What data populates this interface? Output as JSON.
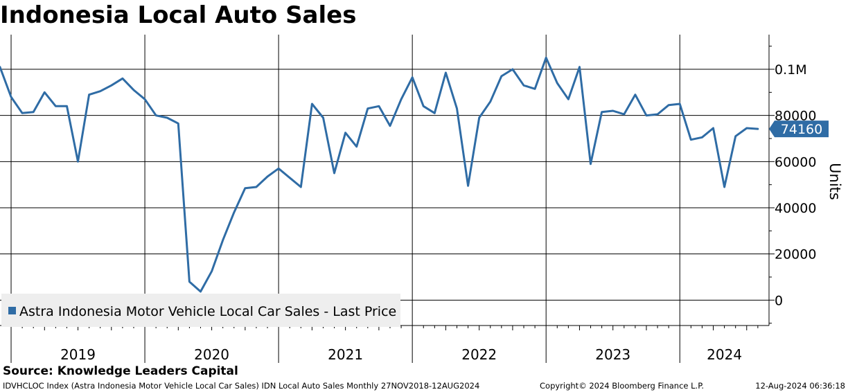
{
  "colors": {
    "line": "#2f6ca5",
    "grid": "#000000",
    "legend_bg": "#eeeeee",
    "badge_bg": "#2f6ca5",
    "badge_text": "#ffffff"
  },
  "source_text": "Source: Knowledge Leaders Capital",
  "footer": {
    "left": "IDVHCLOC Index (Astra Indonesia Motor Vehicle Local Car Sales) IDN Local Auto Sales  Monthly 27NOV2018-12AUG2024",
    "middle": "Copyright© 2024 Bloomberg Finance L.P.",
    "right": "12-Aug-2024 06:36:18"
  },
  "chart_data": {
    "type": "line",
    "title": "Indonesia Local Auto Sales",
    "ylabel": "Units",
    "xlabel": "",
    "ylim": [
      -11000,
      115000
    ],
    "xlim": [
      2018.917,
      2024.667
    ],
    "y_ticks": [
      {
        "value": 0,
        "label": "0"
      },
      {
        "value": 20000,
        "label": "20000"
      },
      {
        "value": 40000,
        "label": "40000"
      },
      {
        "value": 60000,
        "label": "60000"
      },
      {
        "value": 80000,
        "label": "80000"
      },
      {
        "value": 100000,
        "label": "0.1M"
      }
    ],
    "x_year_labels": [
      "2019",
      "2020",
      "2021",
      "2022",
      "2023",
      "2024"
    ],
    "last_value": 74160,
    "last_value_label": "74160",
    "legend": [
      "Astra Indonesia Motor Vehicle Local Car Sales - Last Price"
    ],
    "grid": true,
    "series": [
      {
        "name": "Astra Indonesia Motor Vehicle Local Car Sales - Last Price",
        "start": "2018-12",
        "values": [
          101000,
          88000,
          81000,
          81500,
          90000,
          84000,
          84000,
          60000,
          89000,
          90500,
          93000,
          96000,
          91000,
          87000,
          80000,
          79000,
          76500,
          8000,
          3700,
          12500,
          26000,
          38000,
          48500,
          49000,
          53500,
          57000,
          53000,
          49000,
          85000,
          79000,
          55000,
          72500,
          66500,
          83000,
          84000,
          75500,
          87000,
          96500,
          84000,
          81000,
          98500,
          83000,
          49500,
          79000,
          86000,
          97000,
          100000,
          93000,
          91500,
          105000,
          94000,
          87000,
          101000,
          59000,
          81500,
          82000,
          80500,
          89000,
          80000,
          80500,
          84500,
          85000,
          69500,
          70500,
          74500,
          49000,
          71000,
          74500,
          74160
        ]
      }
    ]
  }
}
